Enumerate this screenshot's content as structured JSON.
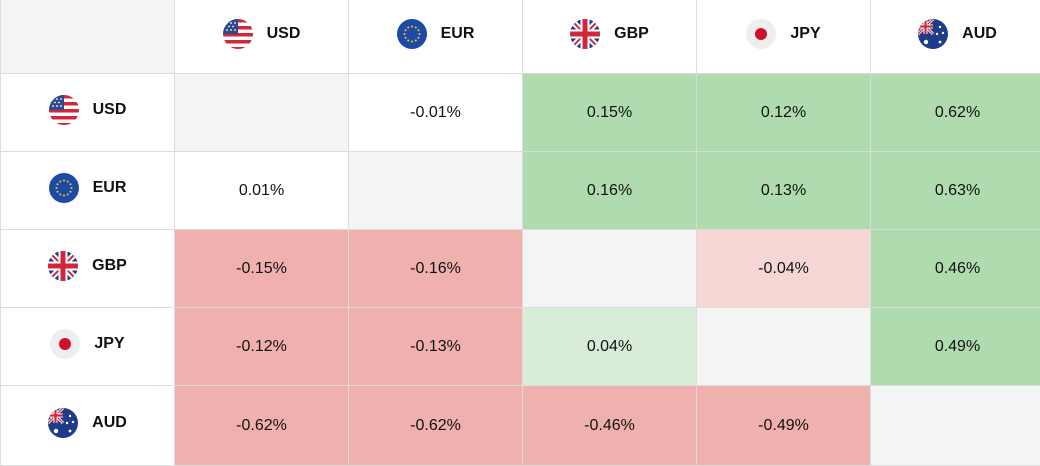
{
  "currencies": [
    {
      "code": "USD",
      "flag": "us-flag-icon"
    },
    {
      "code": "EUR",
      "flag": "eu-flag-icon"
    },
    {
      "code": "GBP",
      "flag": "uk-flag-icon"
    },
    {
      "code": "JPY",
      "flag": "japan-flag-icon"
    },
    {
      "code": "AUD",
      "flag": "australia-flag-icon"
    }
  ],
  "colors": {
    "strong_positive": "#b0dbae",
    "weak_positive": "#d9ecd7",
    "strong_negative": "#f0b0ae",
    "weak_negative": "#f7d6d6",
    "neutral": "#ffffff",
    "diagonal": "#f4f4f4"
  },
  "chart_data": {
    "type": "heatmap",
    "rows": [
      "USD",
      "EUR",
      "GBP",
      "JPY",
      "AUD"
    ],
    "columns": [
      "USD",
      "EUR",
      "GBP",
      "JPY",
      "AUD"
    ],
    "values": [
      [
        null,
        -0.01,
        0.15,
        0.12,
        0.62
      ],
      [
        0.01,
        null,
        0.16,
        0.13,
        0.63
      ],
      [
        -0.15,
        -0.16,
        null,
        -0.04,
        0.46
      ],
      [
        -0.12,
        -0.13,
        0.04,
        null,
        0.49
      ],
      [
        -0.62,
        -0.62,
        -0.46,
        -0.49,
        null
      ]
    ],
    "labels": [
      [
        "",
        "-0.01%",
        "0.15%",
        "0.12%",
        "0.62%"
      ],
      [
        "0.01%",
        "",
        "0.16%",
        "0.13%",
        "0.63%"
      ],
      [
        "-0.15%",
        "-0.16%",
        "",
        "-0.04%",
        "0.46%"
      ],
      [
        "-0.12%",
        "-0.13%",
        "0.04%",
        "",
        "0.49%"
      ],
      [
        "-0.62%",
        "-0.62%",
        "-0.46%",
        "-0.49%",
        ""
      ]
    ]
  }
}
